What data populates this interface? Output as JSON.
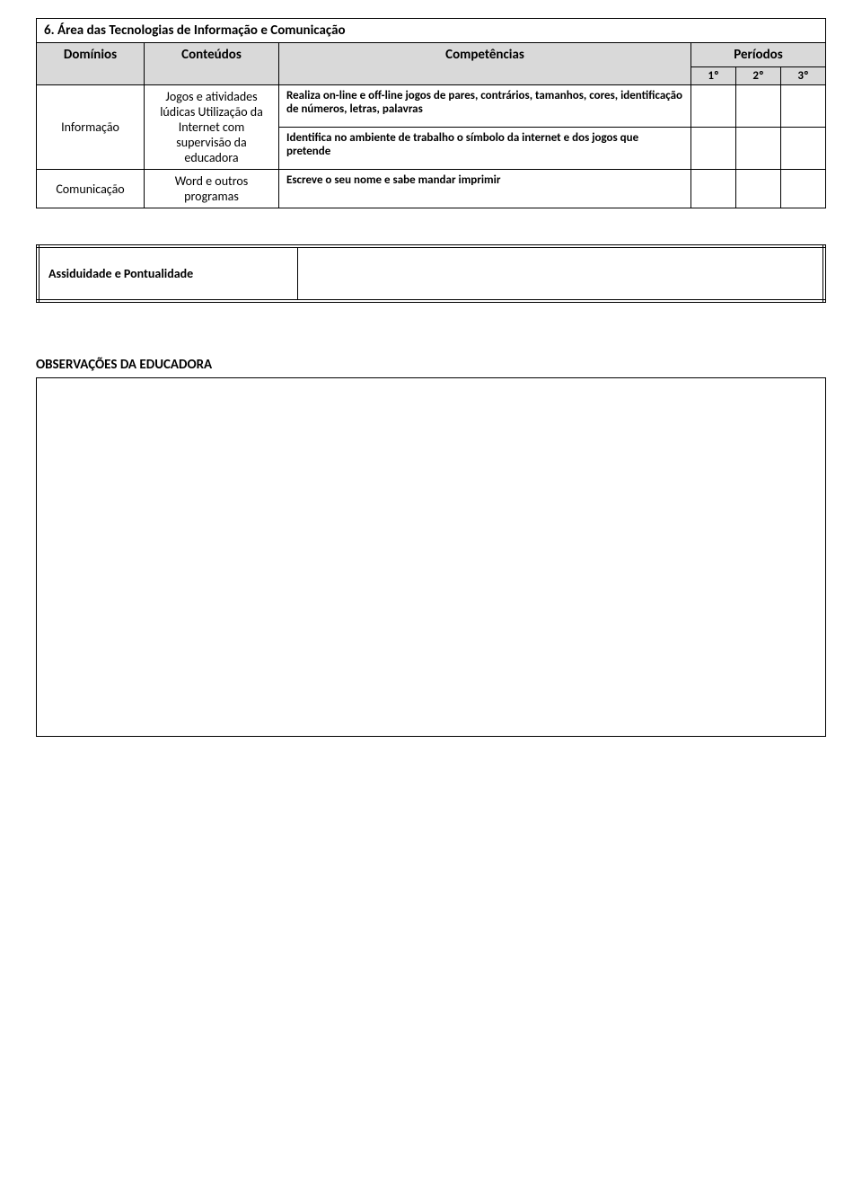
{
  "section": {
    "title": "6. Área das Tecnologias de Informação e Comunicação",
    "headers": {
      "dominios": "Domínios",
      "conteudos": "Conteúdos",
      "competencias": "Competências",
      "periodos": "Períodos",
      "periodo1": "1º",
      "periodo2": "2º",
      "periodo3": "3º"
    },
    "rows": [
      {
        "domain": "Informação",
        "domain_rowspan": 2,
        "content": "Jogos e atividades lúdicas Utilização da Internet com supervisão da educadora",
        "content_rowspan": 2,
        "competence": "Realiza on-line e off-line jogos de pares, contrários, tamanhos, cores, identificação de números, letras, palavras"
      },
      {
        "competence": "Identifica no ambiente de trabalho o símbolo da internet e dos jogos que pretende"
      },
      {
        "domain": "Comunicação",
        "content": "Word e outros programas",
        "competence": "Escreve o seu nome e sabe mandar imprimir"
      }
    ]
  },
  "attendance": {
    "label": "Assiduidade e Pontualidade"
  },
  "observations": {
    "title": "OBSERVAÇÕES DA EDUCADORA"
  },
  "colors": {
    "header_bg": "#d9d9d9",
    "border": "#000000",
    "background": "#ffffff"
  }
}
